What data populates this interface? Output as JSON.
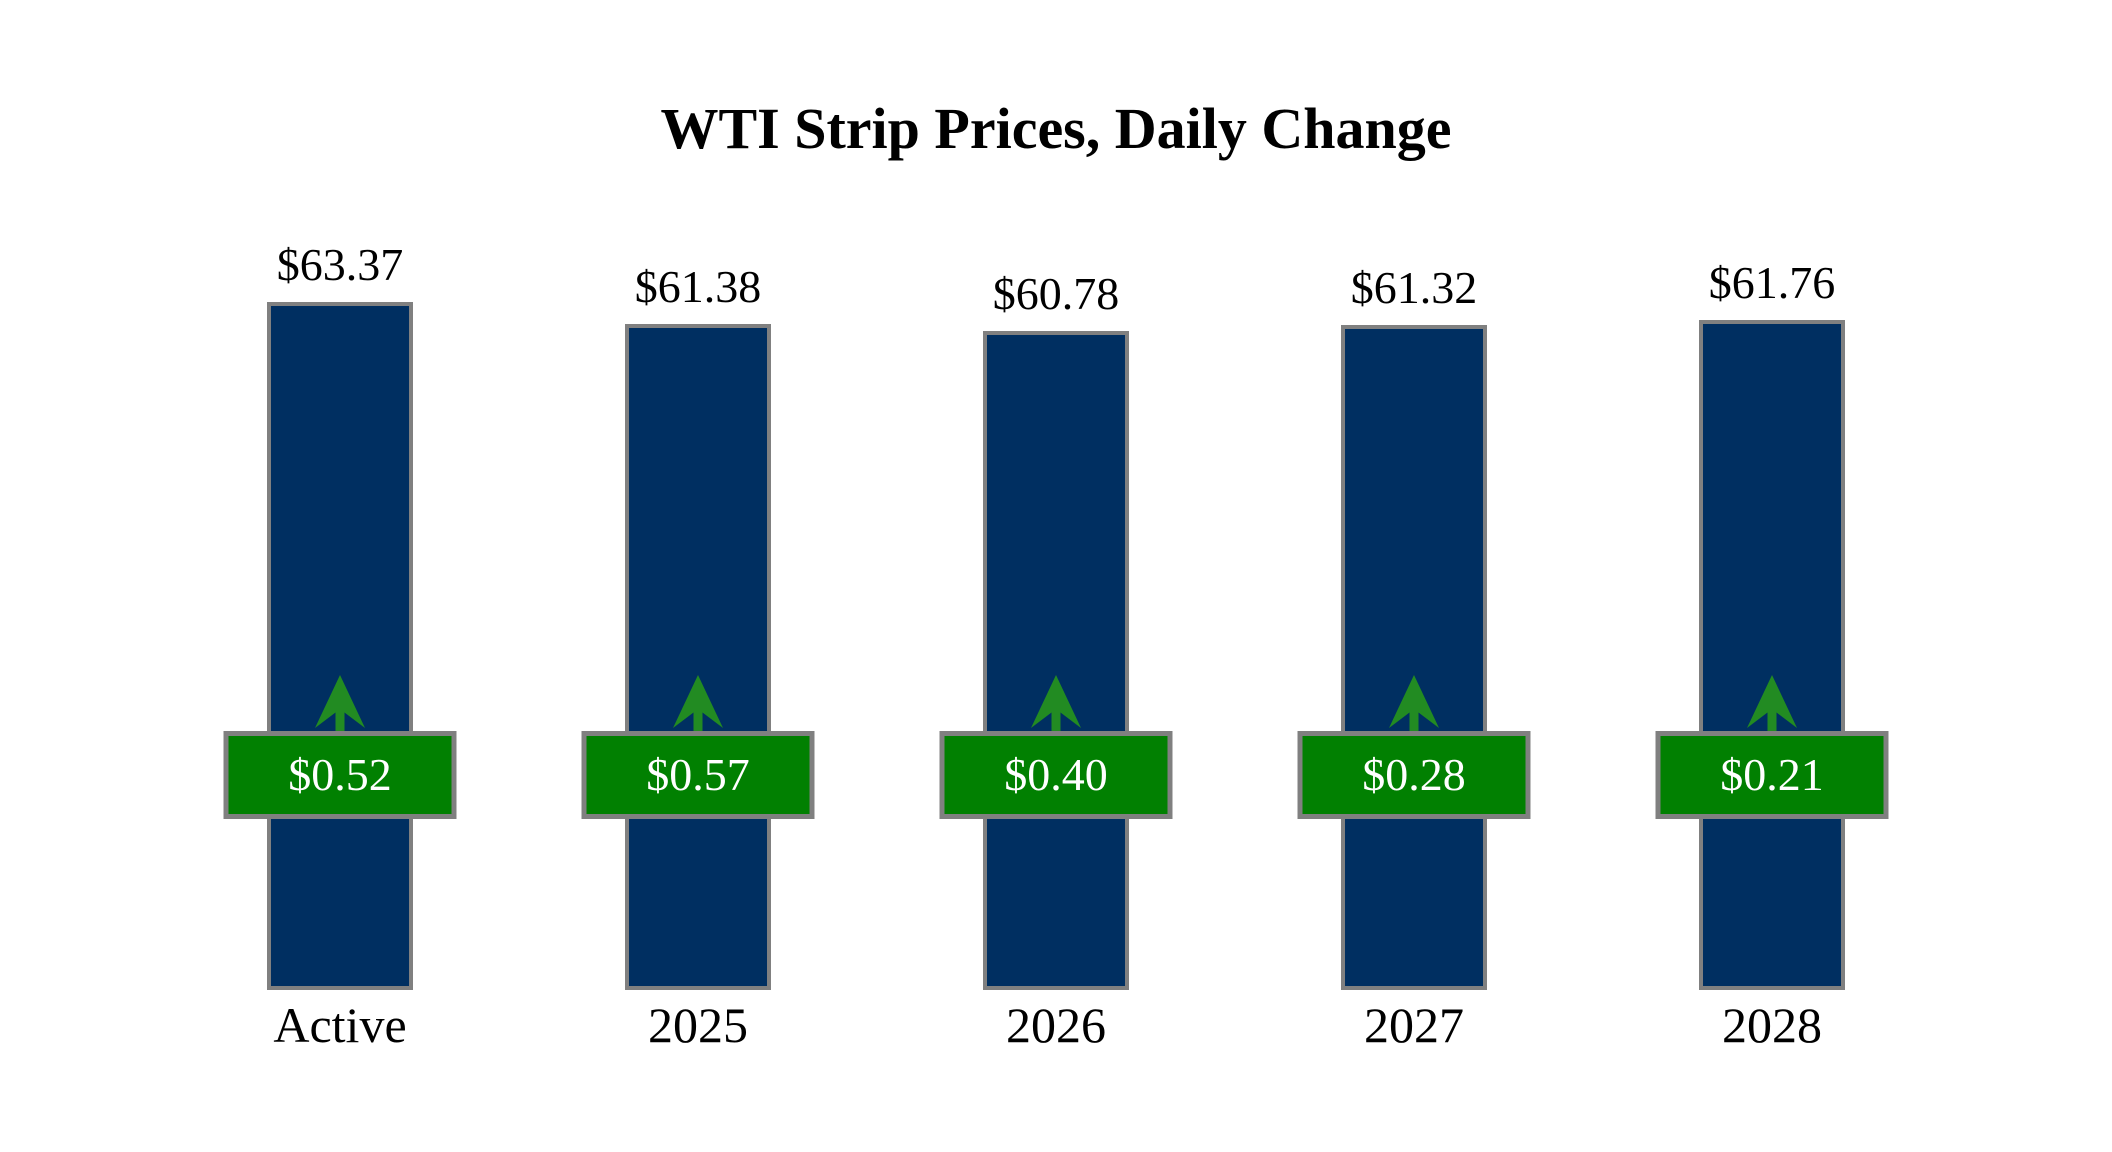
{
  "title": "WTI Strip Prices, Daily Change",
  "colors": {
    "background": "#ffffff",
    "bar_fill": "#002f61",
    "bar_border": "#808080",
    "badge_fill": "#018001",
    "badge_border": "#808080",
    "badge_text": "#ffffff",
    "arrow": "#228b22",
    "label_text": "#000000"
  },
  "chart_data": {
    "type": "bar",
    "title": "WTI Strip Prices, Daily Change",
    "categories": [
      "Active",
      "2025",
      "2026",
      "2027",
      "2028"
    ],
    "series": [
      {
        "name": "strip_price_usd_per_bbl",
        "values": [
          63.37,
          61.38,
          60.78,
          61.32,
          61.76
        ]
      },
      {
        "name": "daily_change_usd",
        "values": [
          0.52,
          0.57,
          0.4,
          0.28,
          0.21
        ]
      }
    ],
    "price_labels": [
      "$63.37",
      "$61.38",
      "$60.78",
      "$61.32",
      "$61.76"
    ],
    "change_labels": [
      "$0.52",
      "$0.57",
      "$0.40",
      "$0.28",
      "$0.21"
    ],
    "change_direction": [
      "up",
      "up",
      "up",
      "up",
      "up"
    ],
    "legend": "none",
    "grid": false,
    "axes_hidden": true
  }
}
